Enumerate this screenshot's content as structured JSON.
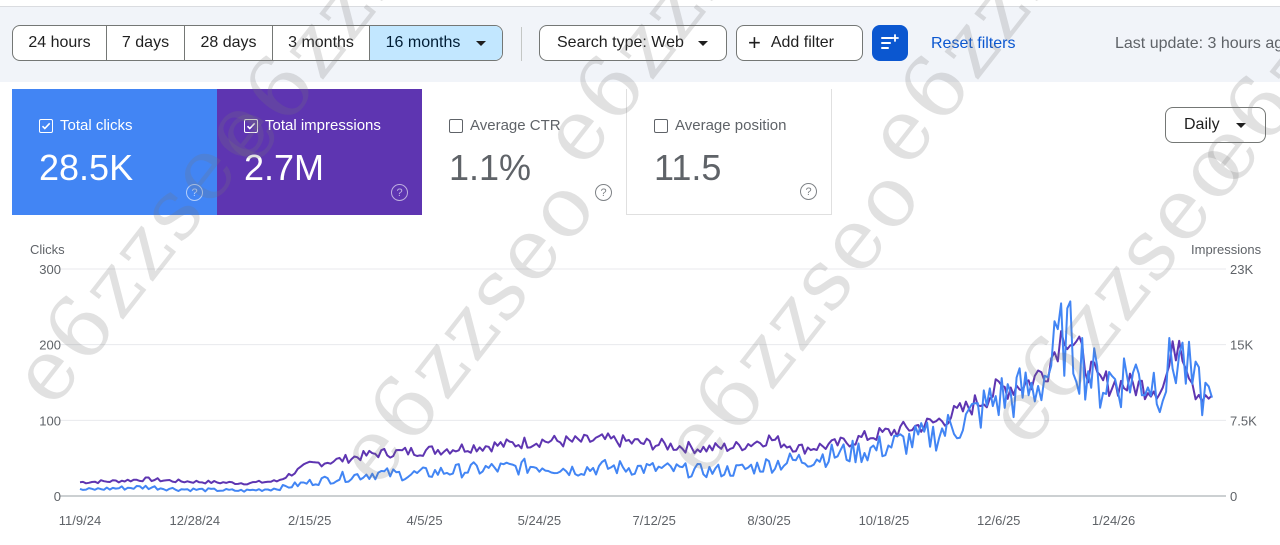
{
  "toolbar": {
    "date_ranges": [
      {
        "label": "24 hours",
        "active": false
      },
      {
        "label": "7 days",
        "active": false
      },
      {
        "label": "28 days",
        "active": false
      },
      {
        "label": "3 months",
        "active": false
      },
      {
        "label": "16 months",
        "active": true
      }
    ],
    "search_type": "Search type: Web",
    "add_filter": "Add filter",
    "reset_filters": "Reset filters",
    "last_update": "Last update: 3 hours ago"
  },
  "metrics": {
    "clicks": {
      "label": "Total clicks",
      "value": "28.5K",
      "checked": true,
      "color": "#4285f4"
    },
    "impressions": {
      "label": "Total impressions",
      "value": "2.7M",
      "checked": true,
      "color": "#5e35b1"
    },
    "ctr": {
      "label": "Average CTR",
      "value": "1.1%",
      "checked": false
    },
    "position": {
      "label": "Average position",
      "value": "11.5",
      "checked": false
    }
  },
  "granularity": "Daily",
  "watermark": "e6zzseo",
  "chart_data": {
    "type": "line",
    "xlabel": "",
    "left_axis": {
      "label": "Clicks",
      "range": [
        0,
        300
      ],
      "ticks": [
        "300",
        "200",
        "100",
        "0"
      ]
    },
    "right_axis": {
      "label": "Impressions",
      "range": [
        0,
        23000
      ],
      "ticks": [
        "23K",
        "15K",
        "7.5K",
        "0"
      ]
    },
    "x_ticks": [
      "11/9/24",
      "12/28/24",
      "2/15/25",
      "4/5/25",
      "5/24/25",
      "7/12/25",
      "8/30/25",
      "10/18/25",
      "12/6/25",
      "1/24/26"
    ],
    "grid": true,
    "series": [
      {
        "name": "Clicks",
        "axis": "left",
        "color": "#4285f4",
        "x": [
          "11/9/24",
          "11/23/24",
          "12/7/24",
          "12/21/24",
          "1/4/25",
          "1/18/25",
          "2/1/25",
          "2/15/25",
          "3/1/25",
          "3/15/25",
          "3/29/25",
          "4/12/25",
          "4/26/25",
          "5/10/25",
          "5/24/25",
          "6/7/25",
          "6/21/25",
          "7/5/25",
          "7/19/25",
          "8/2/25",
          "8/16/25",
          "8/30/25",
          "9/13/25",
          "9/27/25",
          "10/11/25",
          "10/25/25",
          "11/8/25",
          "11/22/25",
          "12/6/25",
          "12/20/25",
          "12/27/25",
          "1/3/26",
          "1/17/26",
          "1/31/26",
          "2/14/26",
          "2/21/26",
          "2/28/26",
          "3/7/26"
        ],
        "values": [
          8,
          10,
          12,
          9,
          8,
          7,
          10,
          18,
          25,
          30,
          28,
          32,
          35,
          37,
          40,
          35,
          38,
          37,
          35,
          33,
          34,
          42,
          48,
          55,
          60,
          70,
          80,
          100,
          130,
          140,
          165,
          215,
          150,
          160,
          150,
          190,
          140,
          130
        ]
      },
      {
        "name": "Impressions",
        "axis": "right",
        "color": "#5e35b1",
        "x": [
          "11/9/24",
          "11/23/24",
          "12/7/24",
          "12/21/24",
          "1/4/25",
          "1/18/25",
          "2/1/25",
          "2/15/25",
          "3/1/25",
          "3/15/25",
          "3/29/25",
          "4/12/25",
          "4/26/25",
          "5/10/25",
          "5/24/25",
          "6/7/25",
          "6/21/25",
          "7/5/25",
          "7/19/25",
          "8/2/25",
          "8/16/25",
          "8/30/25",
          "9/13/25",
          "9/27/25",
          "10/11/25",
          "10/25/25",
          "11/8/25",
          "11/22/25",
          "12/6/25",
          "12/20/25",
          "12/27/25",
          "1/3/26",
          "1/17/26",
          "1/31/26",
          "2/14/26",
          "2/21/26",
          "2/28/26",
          "3/7/26"
        ],
        "values": [
          1400,
          1500,
          1700,
          1500,
          1400,
          1300,
          1500,
          3200,
          3700,
          4300,
          4500,
          4700,
          5000,
          5200,
          5600,
          5500,
          5700,
          5400,
          5100,
          4800,
          5000,
          5800,
          4800,
          5200,
          6000,
          6700,
          7400,
          8800,
          10800,
          11600,
          13200,
          17000,
          11600,
          11200,
          11000,
          16300,
          10800,
          10200
        ]
      }
    ]
  }
}
